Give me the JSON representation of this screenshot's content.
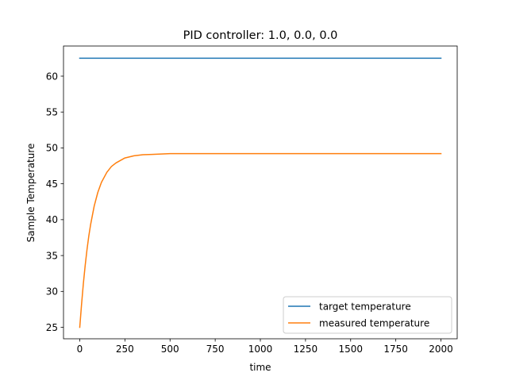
{
  "chart_data": {
    "type": "line",
    "title": "PID controller: 1.0, 0.0, 0.0",
    "xlabel": "time",
    "ylabel": "Sample Temperature",
    "xlim": [
      -90,
      2090
    ],
    "ylim": [
      23.4,
      64.2
    ],
    "xticks": [
      0,
      250,
      500,
      750,
      1000,
      1250,
      1500,
      1750,
      2000
    ],
    "yticks": [
      25,
      30,
      35,
      40,
      45,
      50,
      55,
      60
    ],
    "grid": false,
    "legend_position": "lower right",
    "x_range": [
      0,
      2000
    ],
    "series": [
      {
        "name": "target temperature",
        "color": "#1f77b4",
        "x": [
          0,
          2000
        ],
        "y": [
          62.5,
          62.5
        ]
      },
      {
        "name": "measured temperature",
        "color": "#ff7f0e",
        "x": [
          0,
          10,
          20,
          30,
          40,
          50,
          60,
          80,
          100,
          120,
          150,
          175,
          200,
          250,
          300,
          350,
          400,
          450,
          500,
          600,
          750,
          1000,
          1250,
          1500,
          1750,
          2000
        ],
        "y": [
          25.0,
          28.2,
          31.1,
          33.6,
          35.8,
          37.7,
          39.3,
          41.9,
          43.8,
          45.2,
          46.6,
          47.4,
          47.9,
          48.6,
          48.9,
          49.05,
          49.1,
          49.15,
          49.2,
          49.2,
          49.2,
          49.2,
          49.2,
          49.2,
          49.2,
          49.2
        ]
      }
    ]
  }
}
